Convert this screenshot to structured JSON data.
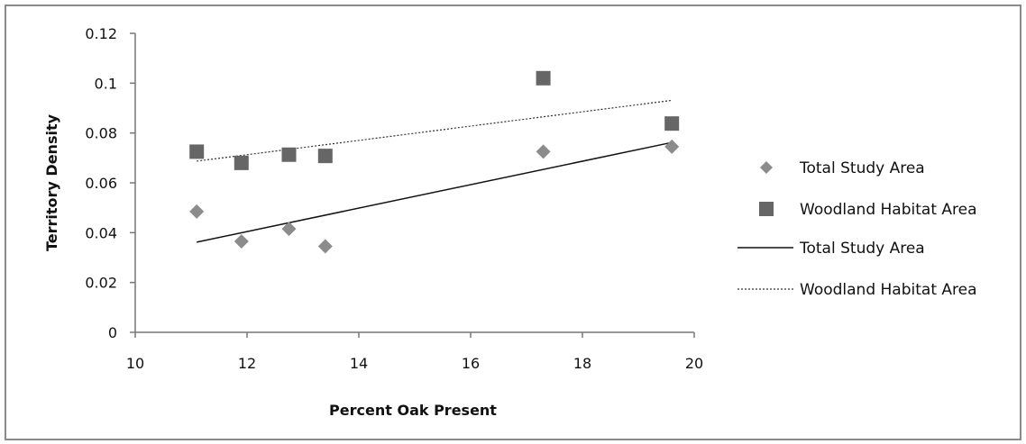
{
  "chart_data": {
    "type": "scatter",
    "xlabel": "Percent Oak Present",
    "ylabel": "Territory Density",
    "xlim": [
      10,
      20
    ],
    "ylim": [
      0,
      0.12
    ],
    "x_ticks": [
      "10",
      "12",
      "14",
      "16",
      "18",
      "20"
    ],
    "y_ticks": [
      "0",
      "0.02",
      "0.04",
      "0.06",
      "0.08",
      "0.1",
      "0.12"
    ],
    "legend_position": "right",
    "grid": false,
    "series": [
      {
        "name": "Total Study Area",
        "marker": "diamond",
        "color": "#8c8c8c",
        "x": [
          11.1,
          11.9,
          12.75,
          13.4,
          17.3,
          19.6
        ],
        "y": [
          0.0485,
          0.0365,
          0.0415,
          0.0345,
          0.0725,
          0.0745
        ]
      },
      {
        "name": "Woodland Habitat Area",
        "marker": "square",
        "color": "#666666",
        "x": [
          11.1,
          11.9,
          12.75,
          13.4,
          17.3,
          19.6
        ],
        "y": [
          0.0725,
          0.068,
          0.0713,
          0.0708,
          0.102,
          0.0838
        ]
      }
    ],
    "trendlines": [
      {
        "name": "Total Study Area",
        "style": "solid",
        "color": "#111111",
        "x": [
          11.1,
          19.6
        ],
        "y": [
          0.0362,
          0.0762
        ]
      },
      {
        "name": "Woodland Habitat Area",
        "style": "dotted",
        "color": "#333333",
        "x": [
          11.1,
          19.6
        ],
        "y": [
          0.0687,
          0.0931
        ]
      }
    ]
  }
}
